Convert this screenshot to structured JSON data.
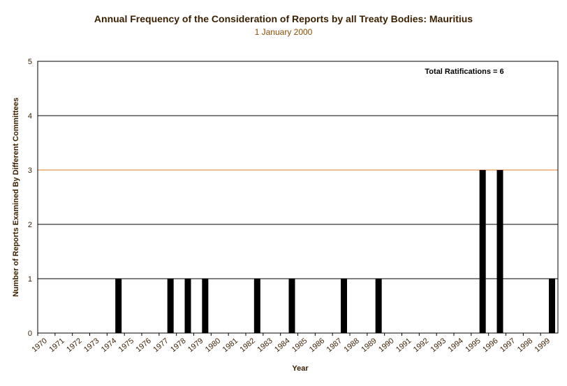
{
  "chart_data": {
    "type": "bar",
    "title": "Annual Frequency of the Consideration of Reports by all Treaty Bodies: Mauritius",
    "subtitle": "1 January 2000",
    "xlabel": "Year",
    "ylabel": "Number of Reports Examined By Different Committees",
    "annotation": "Total Ratifications = 6",
    "categories": [
      "1970",
      "1971",
      "1972",
      "1973",
      "1974",
      "1975",
      "1976",
      "1977",
      "1978",
      "1979",
      "1980",
      "1981",
      "1982",
      "1983",
      "1984",
      "1985",
      "1986",
      "1987",
      "1988",
      "1989",
      "1990",
      "1991",
      "1992",
      "1993",
      "1994",
      "1995",
      "1996",
      "1997",
      "1998",
      "1999"
    ],
    "values": [
      0,
      0,
      0,
      0,
      1,
      0,
      0,
      1,
      1,
      1,
      0,
      0,
      1,
      0,
      1,
      0,
      0,
      1,
      0,
      1,
      0,
      0,
      0,
      0,
      0,
      3,
      3,
      0,
      0,
      1
    ],
    "ylim": [
      0,
      5
    ],
    "yticks": [
      "0",
      "1",
      "2",
      "3",
      "4",
      "5"
    ],
    "grid": true,
    "highlight_line": 3,
    "colors": {
      "bar": "#000000",
      "grid": "#000000",
      "highlight": "#e07b20",
      "frame": "#000000"
    }
  }
}
